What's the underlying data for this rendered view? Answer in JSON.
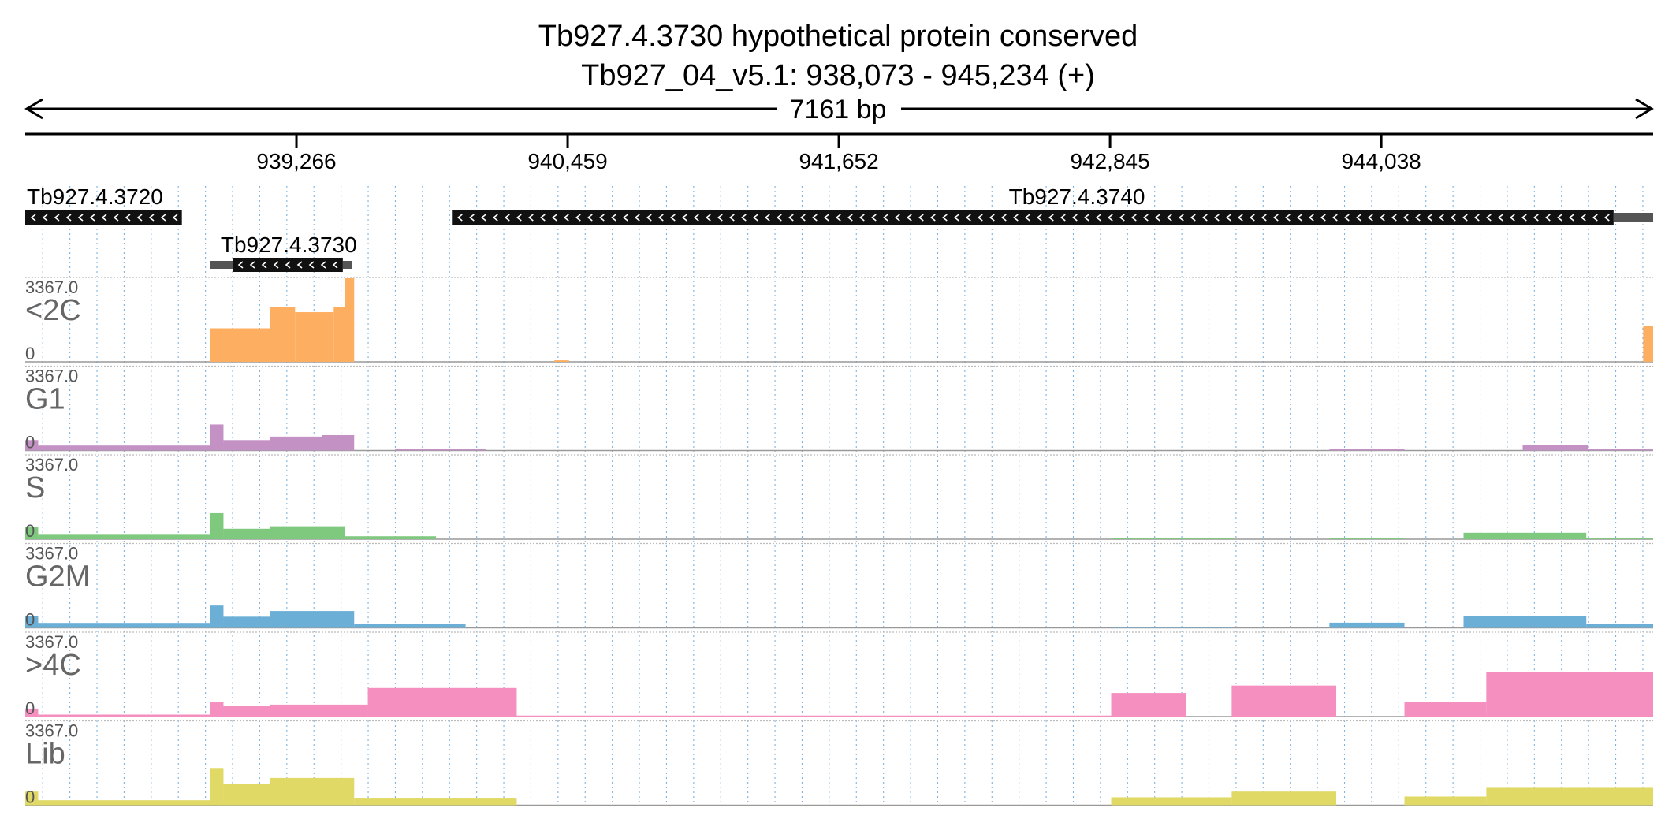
{
  "header": {
    "title": "Tb927.4.3730  hypothetical protein  conserved",
    "location": "Tb927_04_v5.1: 938,073 - 945,234 (+)",
    "span_label": "7161 bp"
  },
  "chart_data": {
    "type": "area",
    "x_range": [
      938073,
      945234
    ],
    "ticks": [
      939266,
      940459,
      941652,
      942845,
      944038
    ],
    "tick_labels": [
      "939,266",
      "940,459",
      "941,652",
      "942,845",
      "944,038"
    ],
    "grid": true,
    "genes": [
      {
        "name": "Tb927.4.3720",
        "start": 938073,
        "end": 938762,
        "strand": "-",
        "utr": [],
        "show_label": true
      },
      {
        "name": "Tb927.4.3730",
        "start": 938885,
        "end": 939510,
        "strand": "-",
        "utr": [
          [
            938885,
            938985
          ],
          [
            939470,
            939510
          ]
        ],
        "show_label": true
      },
      {
        "name": "Tb927.4.3740",
        "start": 939950,
        "end": 945234,
        "strand": "-",
        "utr": [
          [
            945060,
            945234
          ]
        ],
        "show_label": true
      }
    ],
    "tracks": [
      {
        "name": "<2C",
        "ymax_label": "3367.0",
        "ymin_label": "0",
        "ymax": 3367,
        "color": "#fdae61",
        "segments": [
          [
            938885,
            939150,
            1350
          ],
          [
            939150,
            939260,
            2200
          ],
          [
            939260,
            939430,
            2000
          ],
          [
            939430,
            939480,
            2200
          ],
          [
            939480,
            939520,
            3367
          ],
          [
            940400,
            940465,
            60
          ],
          [
            945190,
            945234,
            1450
          ]
        ]
      },
      {
        "name": "G1",
        "ymax_label": "3367.0",
        "ymin_label": "0",
        "ymax": 3367,
        "color": "#c491c4",
        "segments": [
          [
            938073,
            938130,
            420
          ],
          [
            938130,
            938885,
            200
          ],
          [
            938885,
            938945,
            1050
          ],
          [
            938945,
            939150,
            420
          ],
          [
            939150,
            939380,
            560
          ],
          [
            939380,
            939520,
            620
          ],
          [
            939700,
            940100,
            70
          ],
          [
            943810,
            944140,
            70
          ],
          [
            944660,
            944950,
            220
          ],
          [
            944950,
            945234,
            60
          ]
        ]
      },
      {
        "name": "S",
        "ymax_label": "3367.0",
        "ymin_label": "0",
        "ymax": 3367,
        "color": "#7fc97f",
        "segments": [
          [
            938073,
            938130,
            480
          ],
          [
            938130,
            938885,
            180
          ],
          [
            938885,
            938945,
            1050
          ],
          [
            938945,
            939150,
            420
          ],
          [
            939150,
            939480,
            520
          ],
          [
            939480,
            939880,
            120
          ],
          [
            942850,
            943390,
            50
          ],
          [
            943810,
            944140,
            60
          ],
          [
            944400,
            944940,
            260
          ],
          [
            944940,
            945234,
            60
          ]
        ]
      },
      {
        "name": "G2M",
        "ymax_label": "3367.0",
        "ymin_label": "0",
        "ymax": 3367,
        "color": "#6baed6",
        "segments": [
          [
            938073,
            938130,
            480
          ],
          [
            938130,
            938885,
            200
          ],
          [
            938885,
            938945,
            900
          ],
          [
            938945,
            939150,
            450
          ],
          [
            939150,
            939520,
            680
          ],
          [
            939520,
            940010,
            170
          ],
          [
            942850,
            943380,
            40
          ],
          [
            943810,
            944140,
            210
          ],
          [
            944400,
            944940,
            480
          ],
          [
            944940,
            945234,
            160
          ]
        ]
      },
      {
        "name": ">4C",
        "ymax_label": "3367.0",
        "ymin_label": "0",
        "ymax": 3367,
        "color": "#f48fbf",
        "segments": [
          [
            938073,
            938130,
            320
          ],
          [
            938130,
            938885,
            80
          ],
          [
            938885,
            938945,
            600
          ],
          [
            938945,
            939150,
            430
          ],
          [
            939150,
            939580,
            480
          ],
          [
            939580,
            940235,
            1150
          ],
          [
            940235,
            942850,
            40
          ],
          [
            942850,
            943180,
            950
          ],
          [
            943380,
            943840,
            1250
          ],
          [
            944140,
            944500,
            600
          ],
          [
            944500,
            945234,
            1800
          ]
        ]
      },
      {
        "name": "Lib",
        "ymax_label": "3367.0",
        "ymin_label": "0",
        "ymax": 3367,
        "color": "#e0d966",
        "segments": [
          [
            938073,
            938130,
            550
          ],
          [
            938130,
            938885,
            200
          ],
          [
            938885,
            938945,
            1500
          ],
          [
            938945,
            939150,
            850
          ],
          [
            939150,
            939520,
            1100
          ],
          [
            939520,
            940235,
            300
          ],
          [
            942850,
            943380,
            320
          ],
          [
            943380,
            943840,
            550
          ],
          [
            944140,
            944500,
            350
          ],
          [
            944500,
            945234,
            700
          ]
        ]
      }
    ]
  }
}
